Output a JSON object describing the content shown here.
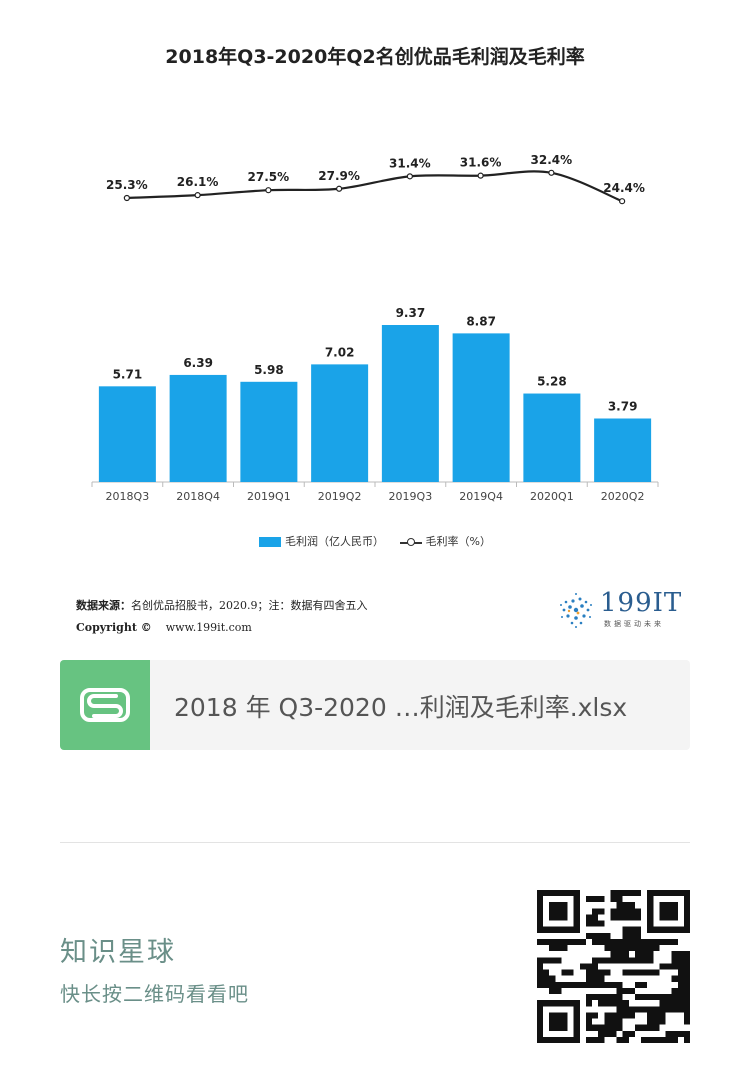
{
  "chart_title": "2018年Q3-2020年Q2名创优品毛利润及毛利率",
  "chart_data": {
    "type": "bar",
    "title": "2018年Q3-2020年Q2名创优品毛利润及毛利率",
    "categories": [
      "2018Q3",
      "2018Q4",
      "2019Q1",
      "2019Q2",
      "2019Q3",
      "2019Q4",
      "2020Q1",
      "2020Q2"
    ],
    "series": [
      {
        "name": "毛利润（亿人民币）",
        "type": "bar",
        "values": [
          5.71,
          6.39,
          5.98,
          7.02,
          9.37,
          8.87,
          5.28,
          3.79
        ],
        "labels": [
          "5.71",
          "6.39",
          "5.98",
          "7.02",
          "9.37",
          "8.87",
          "5.28",
          "3.79"
        ]
      },
      {
        "name": "毛利率（%）",
        "type": "line",
        "values": [
          25.3,
          26.1,
          27.5,
          27.9,
          31.4,
          31.6,
          32.4,
          24.4
        ],
        "labels": [
          "25.3%",
          "26.1%",
          "27.5%",
          "27.9%",
          "31.4%",
          "31.6%",
          "32.4%",
          "24.4%"
        ]
      }
    ],
    "bar_color": "#1aa3e8",
    "line_color": "#222222",
    "legend_position": "bottom",
    "grid": false
  },
  "legend": {
    "bar_label": "毛利润（亿人民币）",
    "line_label": "毛利率（%）"
  },
  "source": {
    "line1_label": "数据来源：",
    "line1_text": "名创优品招股书，2020.9；注：数据有四舍五入",
    "copyright_label": "Copyright ©",
    "url": "www.199it.com"
  },
  "logo": {
    "text": "199IT",
    "sub": "数据驱动未来",
    "color": "#2a5d8f"
  },
  "attachment": {
    "icon_letter": "S",
    "icon_color": "#67c381",
    "file_name": "2018 年 Q3-2020 …利润及毛利率.xlsx"
  },
  "footer": {
    "title": "知识星球",
    "subtitle": "快长按二维码看看吧",
    "text_color": "#6a8f88"
  }
}
